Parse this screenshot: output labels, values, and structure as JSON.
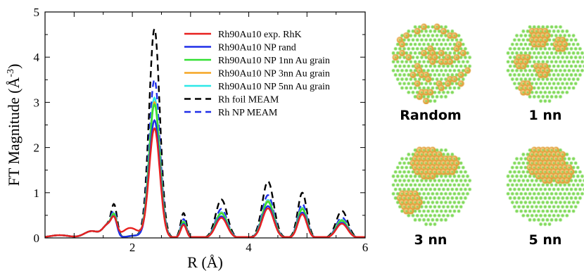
{
  "chart_data": {
    "type": "line",
    "xlabel_main": "R (",
    "xlabel_unit": "Å",
    "xlabel_end": ")",
    "ylabel_main": "FT Magnitude (",
    "ylabel_unit": "Å",
    "ylabel_exp": "-3",
    "ylabel_end": ")",
    "xlim": [
      0.5,
      6
    ],
    "ylim": [
      0,
      5
    ],
    "xticks": [
      2,
      4,
      6
    ],
    "yticks": [
      0,
      1,
      2,
      3,
      4,
      5
    ],
    "legend_position": "top-right",
    "series": [
      {
        "name": "Rh90Au10 exp. RhK",
        "color": "#e8211f",
        "dash": false,
        "peak": 2.42
      },
      {
        "name": "Rh90Au10 NP rand",
        "color": "#1f2ee8",
        "dash": false,
        "peak": 2.6
      },
      {
        "name": "Rh90Au10 NP 1nn Au grain",
        "color": "#33e033",
        "dash": false,
        "peak": 2.95
      },
      {
        "name": "Rh90Au10 NP 3nn Au grain",
        "color": "#f5a623",
        "dash": false,
        "peak": 3.0
      },
      {
        "name": "Rh90Au10 NP 5nn Au grain",
        "color": "#2ee8e8",
        "dash": false,
        "peak": 3.1
      },
      {
        "name": "Rh foil MEAM",
        "color": "#000000",
        "dash": true,
        "peak": 4.62
      },
      {
        "name": "Rh NP MEAM",
        "color": "#1f2ee8",
        "dash": true,
        "peak": 3.5
      }
    ]
  },
  "panels": [
    {
      "label": "Random",
      "pattern": "random"
    },
    {
      "label": "1 nn",
      "pattern": "1nn"
    },
    {
      "label": "3 nn",
      "pattern": "3nn"
    },
    {
      "label": "5 nn",
      "pattern": "5nn"
    }
  ],
  "colors": {
    "rh_atom": "#7ed957",
    "au_atom": "#e0a23c",
    "au_core": "#f4c47a"
  }
}
